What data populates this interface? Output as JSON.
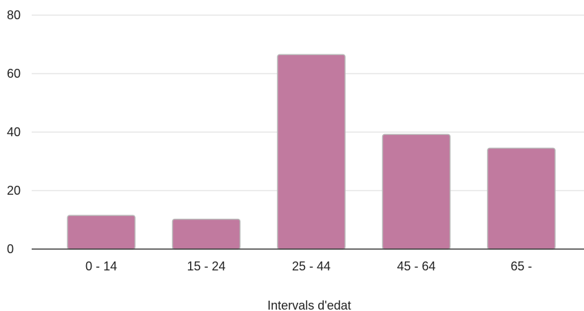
{
  "chart_data": {
    "type": "bar",
    "categories": [
      "0 - 14",
      "15 - 24",
      "25 - 44",
      "45 - 64",
      "65 -"
    ],
    "values": [
      11.5,
      10.2,
      66.5,
      39.2,
      34.5
    ],
    "title": "",
    "xlabel": "Intervals d'edat",
    "ylabel": "",
    "ylim": [
      0,
      80
    ],
    "yticks": [
      0,
      20,
      40,
      60,
      80
    ],
    "grid": true,
    "legend": "none",
    "colors": {
      "bar": "#c17a9f",
      "bar_stroke": "#b8b8b8",
      "grid": "#d9d9d9",
      "baseline": "#333333",
      "text": "#222222"
    }
  }
}
